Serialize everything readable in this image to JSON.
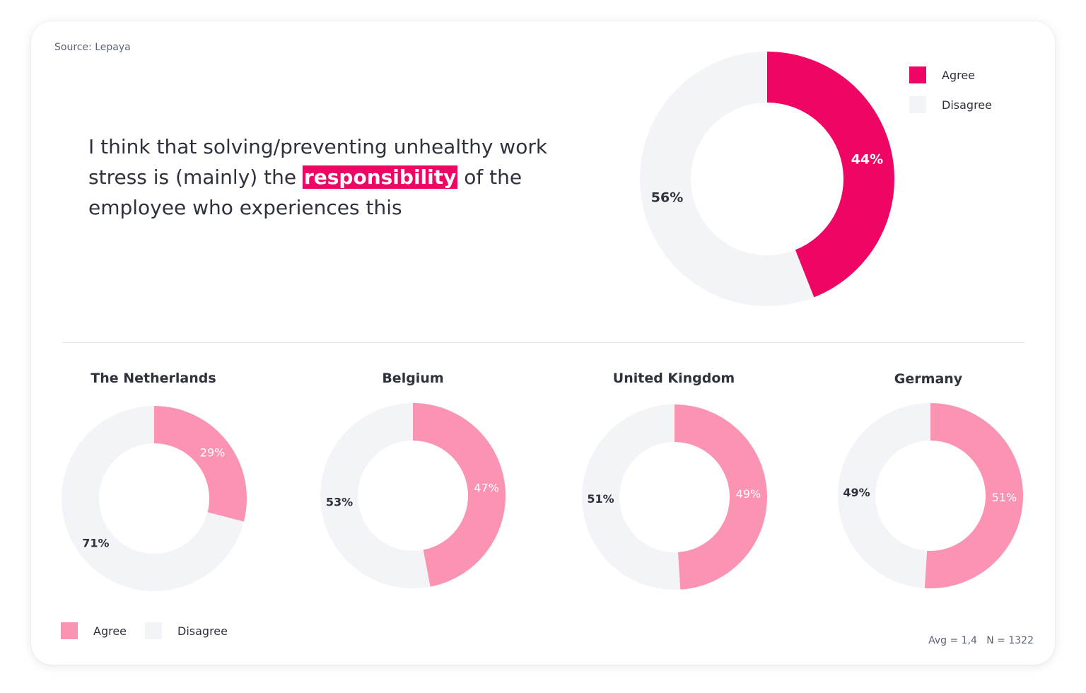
{
  "source": "Source: Lepaya",
  "headline": {
    "before": "I think that solving/preventing unhealthy work stress is (mainly) the ",
    "highlight": "responsibility",
    "after": " of the employee who experiences this"
  },
  "legend": {
    "agree": "Agree",
    "disagree": "Disagree"
  },
  "colors": {
    "agree_main": "#ef0563",
    "agree_country": "#fb93b3",
    "disagree": "#f3f4f8",
    "label_dark": "#2e323c",
    "label_light": "#ffffff"
  },
  "footnote": "Avg = 1,4   N = 1322",
  "chart_data": [
    {
      "type": "pie",
      "title": "",
      "categories": [
        "Agree",
        "Disagree"
      ],
      "values": [
        44,
        56
      ],
      "labels": [
        "44%",
        "56%"
      ]
    },
    {
      "type": "pie",
      "title": "The Netherlands",
      "categories": [
        "Agree",
        "Disagree"
      ],
      "values": [
        29,
        71
      ],
      "labels": [
        "29%",
        "71%"
      ]
    },
    {
      "type": "pie",
      "title": "Belgium",
      "categories": [
        "Agree",
        "Disagree"
      ],
      "values": [
        47,
        53
      ],
      "labels": [
        "47%",
        "53%"
      ]
    },
    {
      "type": "pie",
      "title": "United Kingdom",
      "categories": [
        "Agree",
        "Disagree"
      ],
      "values": [
        49,
        51
      ],
      "labels": [
        "49%",
        "51%"
      ]
    },
    {
      "type": "pie",
      "title": "Germany",
      "categories": [
        "Agree",
        "Disagree"
      ],
      "values": [
        51,
        49
      ],
      "labels": [
        "51%",
        "49%"
      ]
    }
  ]
}
